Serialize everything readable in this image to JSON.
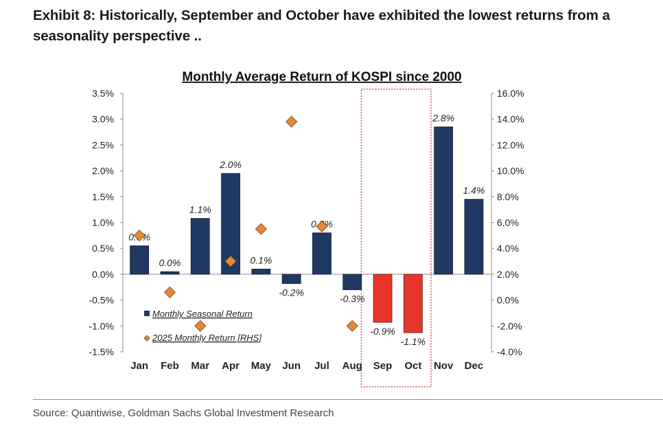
{
  "exhibit_title": "Exhibit 8: Historically, September and October have exhibited the lowest returns from a seasonality perspective ..",
  "source": "Source: Quantiwise, Goldman Sachs Global Investment Research",
  "colors": {
    "bar": "#1f3864",
    "bar_highlight": "#e8352a",
    "marker": "#e08a3a",
    "marker_edge": "#7a4512",
    "highlight_box": "#d9534f"
  },
  "chart_data": {
    "type": "bar",
    "title": "Monthly Average Return of KOSPI since 2000",
    "categories": [
      "Jan",
      "Feb",
      "Mar",
      "Apr",
      "May",
      "Jun",
      "Jul",
      "Aug",
      "Sep",
      "Oct",
      "Nov",
      "Dec"
    ],
    "series": [
      {
        "name": "Monthly Seasonal Return",
        "axis": "left",
        "type": "bar",
        "values": [
          0.55,
          0.05,
          1.08,
          1.95,
          0.1,
          -0.18,
          0.8,
          -0.3,
          -0.93,
          -1.13,
          2.85,
          1.45
        ],
        "labels": [
          "0.5%",
          "0.0%",
          "1.1%",
          "2.0%",
          "0.1%",
          "-0.2%",
          "0.8%",
          "-0.3%",
          "-0.9%",
          "-1.1%",
          "2.8%",
          "1.4%"
        ],
        "highlight": [
          "Sep",
          "Oct"
        ]
      },
      {
        "name": "2025 Monthly Return [RHS]",
        "axis": "right",
        "type": "scatter",
        "marker": "diamond",
        "values": [
          5.0,
          0.6,
          -2.0,
          3.0,
          5.5,
          13.8,
          5.7,
          -2.0,
          null,
          null,
          null,
          null
        ]
      }
    ],
    "y_left": {
      "range": [
        -1.5,
        3.5
      ],
      "ticks": [
        "3.5%",
        "3.0%",
        "2.5%",
        "2.0%",
        "1.5%",
        "1.0%",
        "0.5%",
        "0.0%",
        "-0.5%",
        "-1.0%",
        "-1.5%"
      ]
    },
    "y_right": {
      "range": [
        -4,
        16
      ],
      "ticks": [
        "16.0%",
        "14.0%",
        "12.0%",
        "10.0%",
        "8.0%",
        "6.0%",
        "4.0%",
        "2.0%",
        "0.0%",
        "-2.0%",
        "-4.0%"
      ]
    },
    "legend_position": "bottom-left",
    "grid": false
  }
}
